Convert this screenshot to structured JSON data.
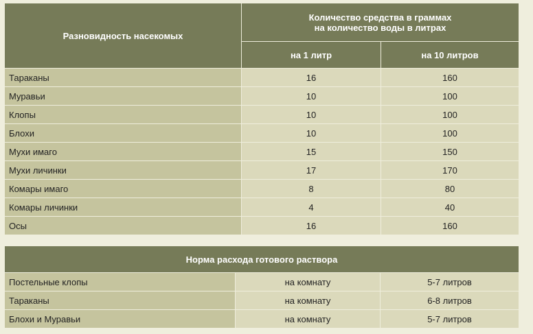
{
  "table1": {
    "header": {
      "col1": "Разновидность насекомых",
      "group_line1": "Количество средства в граммах",
      "group_line2": "на количество воды в литрах",
      "col2": "на 1 литр",
      "col3": "на 10 литров"
    },
    "rows": [
      [
        "Тараканы",
        "16",
        "160"
      ],
      [
        "Муравьи",
        "10",
        "100"
      ],
      [
        "Клопы",
        "10",
        "100"
      ],
      [
        "Блохи",
        "10",
        "100"
      ],
      [
        "Мухи имаго",
        "15",
        "150"
      ],
      [
        "Мухи личинки",
        "17",
        "170"
      ],
      [
        "Комары имаго",
        "8",
        "80"
      ],
      [
        "Комары личинки",
        "4",
        "40"
      ],
      [
        "Осы",
        "16",
        "160"
      ]
    ]
  },
  "table2": {
    "header": "Норма расхода готового раствора",
    "rows": [
      [
        "Постельные клопы",
        "на комнату",
        "5-7 литров"
      ],
      [
        "Тараканы",
        "на комнату",
        "6-8 литров"
      ],
      [
        "Блохи и Муравьи",
        "на комнату",
        "5-7 литров"
      ]
    ]
  }
}
